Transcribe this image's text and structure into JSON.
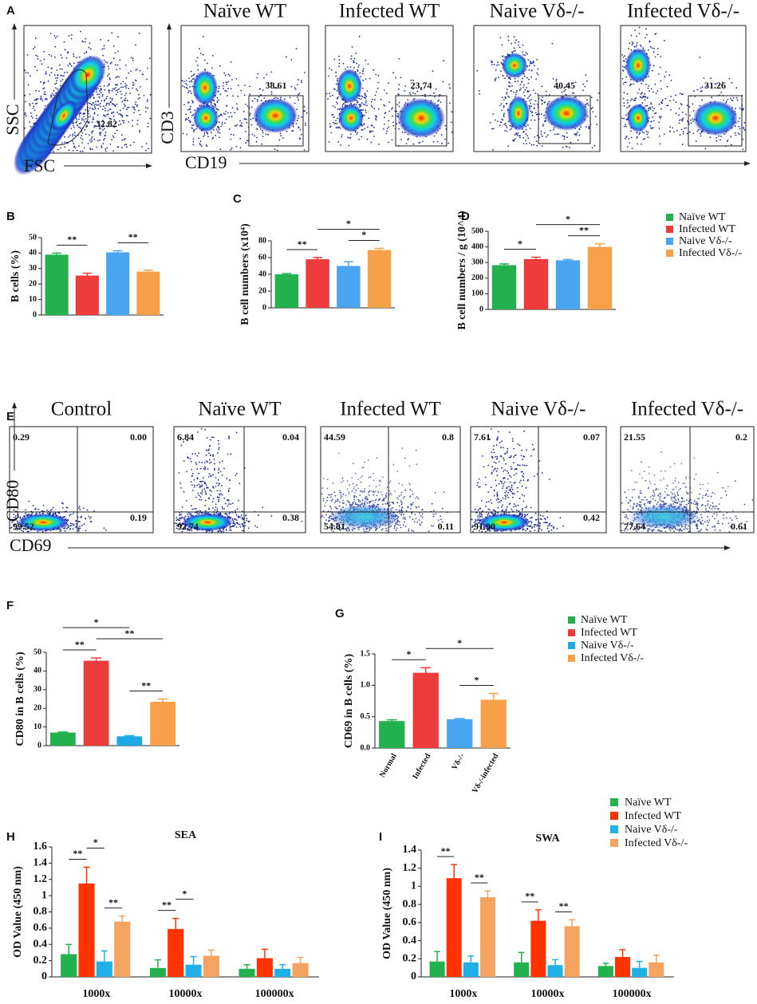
{
  "flow_a": {
    "panel": "A",
    "scatter": {
      "x_label": "FSC",
      "y_label": "SSC",
      "gate": "32.82"
    },
    "x_label": "CD19",
    "y_label": "CD3",
    "plots": [
      {
        "title": "Naïve WT",
        "gate": "38.61"
      },
      {
        "title": "Infected WT",
        "gate": "23.74"
      },
      {
        "title": "Naive Vδ-/-",
        "gate": "40.45"
      },
      {
        "title": "Infected Vδ-/-",
        "gate": "31.26"
      }
    ]
  },
  "flow_e": {
    "panel": "E",
    "x_label": "CD69",
    "y_label": "CD80",
    "plots": [
      {
        "title": "Control",
        "quadrants": [
          "0.29",
          "0.00",
          "99.52",
          "0.19"
        ]
      },
      {
        "title": "Naïve WT",
        "quadrants": [
          "6.84",
          "0.04",
          "92.74",
          "0.38"
        ]
      },
      {
        "title": "Infected WT",
        "quadrants": [
          "44.59",
          "0.8",
          "54.81",
          "0.11"
        ]
      },
      {
        "title": "Naive Vδ-/-",
        "quadrants": [
          "7.61",
          "0.07",
          "91.90",
          "0.42"
        ]
      },
      {
        "title": "Infected Vδ-/-",
        "quadrants": [
          "21.55",
          "0.2",
          "77.64",
          "0.61"
        ]
      }
    ]
  },
  "legends": [
    {
      "names": [
        "Naïve WT",
        "Infected WT",
        "Naive Vδ-/-",
        "Infected Vδ-/-"
      ],
      "colors": [
        "#22b14c",
        "#ee3b3b",
        "#4aa5f0",
        "#f7a04a"
      ]
    },
    {
      "names": [
        "Naïve WT",
        "Infected WT",
        "Naive Vδ-/-",
        "Infected Vδ-/-"
      ],
      "colors": [
        "#22b14c",
        "#ee3b3b",
        "#1fa8e6",
        "#f7a04a"
      ]
    }
  ],
  "chart_data": [
    {
      "type": "bar",
      "panel": "B",
      "y_label": "B cells (%)",
      "values": [
        39,
        25.5,
        40.5,
        28
      ],
      "errors": [
        1,
        1.5,
        1,
        1
      ],
      "colors": [
        "#22b14c",
        "#ee3b3b",
        "#4aa5f0",
        "#f7a04a"
      ],
      "ylim": [
        0,
        50
      ],
      "yticks": [
        0,
        10,
        20,
        30,
        40,
        50
      ],
      "brackets": [
        {
          "label": "**",
          "between": [
            0,
            1
          ]
        },
        {
          "label": "**",
          "between": [
            2,
            3
          ]
        }
      ]
    },
    {
      "type": "bar",
      "panel": "C",
      "y_label": "B cell numbers  (x10⁴)",
      "values": [
        40,
        58,
        50,
        69
      ],
      "errors": [
        1,
        2,
        5,
        2
      ],
      "colors": [
        "#22b14c",
        "#ee3b3b",
        "#4aa5f0",
        "#f7a04a"
      ],
      "ylim": [
        0,
        80
      ],
      "yticks": [
        0,
        20,
        40,
        60,
        80
      ],
      "brackets": [
        {
          "label": "**",
          "between": [
            0,
            1
          ]
        },
        {
          "label": "*",
          "between": [
            2,
            3
          ]
        },
        {
          "label": "*",
          "between": [
            1,
            3
          ]
        }
      ]
    },
    {
      "type": "bar",
      "panel": "D",
      "y_label": "B cell numbers / g (10^4)",
      "values": [
        283,
        322,
        314,
        400
      ],
      "errors": [
        8,
        12,
        5,
        20
      ],
      "colors": [
        "#22b14c",
        "#ee3b3b",
        "#4aa5f0",
        "#f7a04a"
      ],
      "ylim": [
        0,
        500
      ],
      "yticks": [
        0,
        100,
        200,
        300,
        400,
        500
      ],
      "brackets": [
        {
          "label": "*",
          "between": [
            0,
            1
          ]
        },
        {
          "label": "**",
          "between": [
            2,
            3
          ]
        },
        {
          "label": "*",
          "between": [
            1,
            3
          ]
        }
      ]
    },
    {
      "type": "bar",
      "panel": "F",
      "y_label": "CD80 in B cells (%)",
      "values": [
        7,
        45.5,
        5,
        23.5
      ],
      "errors": [
        0.3,
        1.5,
        0.3,
        1.5
      ],
      "colors": [
        "#22b14c",
        "#ee3b3b",
        "#1fa8e6",
        "#f7a04a"
      ],
      "ylim": [
        0,
        50
      ],
      "yticks": [
        0,
        10,
        20,
        30,
        40,
        50
      ],
      "brackets": [
        {
          "label": "**",
          "between": [
            0,
            1
          ]
        },
        {
          "label": "**",
          "between": [
            1,
            3
          ]
        },
        {
          "label": "**",
          "between": [
            2,
            3
          ]
        },
        {
          "label": "*",
          "between": [
            0,
            2
          ]
        }
      ]
    },
    {
      "type": "bar",
      "panel": "G",
      "y_label": "CD69 in B cells (%)",
      "categories": [
        "Normal",
        "Infected",
        "Vδ-/-",
        "Vδ-/-infected"
      ],
      "values": [
        0.43,
        1.2,
        0.46,
        0.77
      ],
      "errors": [
        0.02,
        0.08,
        0.01,
        0.1
      ],
      "colors": [
        "#22b14c",
        "#ee3b3b",
        "#4aa5f0",
        "#f7a04a"
      ],
      "ylim": [
        0,
        1.5
      ],
      "yticks": [
        {
          "value": 0,
          "label": "0.0"
        },
        0.5,
        {
          "value": 1,
          "label": "1.0"
        },
        1.5
      ],
      "brackets": [
        {
          "label": "*",
          "between": [
            0,
            1
          ]
        },
        {
          "label": "*",
          "between": [
            2,
            3
          ]
        },
        {
          "label": "*",
          "between": [
            1,
            3
          ]
        }
      ]
    },
    {
      "type": "grouped-bar",
      "panel": "H",
      "title": "SEA",
      "y_label": "OD Value (450 nm)",
      "categories": [
        "1000x",
        "10000x",
        "100000x"
      ],
      "series": [
        {
          "color": "#22b14c",
          "values": [
            0.28,
            0.11,
            0.1
          ],
          "errors": [
            0.12,
            0.1,
            0.05
          ]
        },
        {
          "color": "#ff3300",
          "values": [
            1.15,
            0.59,
            0.23
          ],
          "errors": [
            0.2,
            0.13,
            0.11
          ]
        },
        {
          "color": "#1fb0e8",
          "values": [
            0.19,
            0.15,
            0.1
          ],
          "errors": [
            0.13,
            0.1,
            0.05
          ]
        },
        {
          "color": "#f4a460",
          "values": [
            0.68,
            0.26,
            0.17
          ],
          "errors": [
            0.07,
            0.07,
            0.07
          ]
        }
      ],
      "ylim": [
        0,
        1.6
      ],
      "yticks": [
        0,
        0.2,
        0.4,
        0.6,
        0.8,
        1,
        1.2,
        1.4,
        1.6
      ],
      "brackets": [
        {
          "label": "**",
          "group": 0,
          "between": [
            0,
            1
          ]
        },
        {
          "label": "*",
          "group": 0,
          "between": [
            1,
            2
          ]
        },
        {
          "label": "**",
          "group": 0,
          "between": [
            2,
            3
          ]
        },
        {
          "label": "**",
          "group": 1,
          "between": [
            0,
            1
          ]
        },
        {
          "label": "*",
          "group": 1,
          "between": [
            1,
            2
          ]
        }
      ]
    },
    {
      "type": "grouped-bar",
      "panel": "I",
      "title": "SWA",
      "y_label": "OD Value (450 nm)",
      "categories": [
        "1000x",
        "10000x",
        "100000x"
      ],
      "series": [
        {
          "name": "Naïve WT",
          "color": "#22b14c",
          "values": [
            0.17,
            0.16,
            0.12
          ],
          "errors": [
            0.11,
            0.11,
            0.03
          ]
        },
        {
          "name": "Infected WT",
          "color": "#ff3300",
          "values": [
            1.09,
            0.62,
            0.22
          ],
          "errors": [
            0.15,
            0.12,
            0.08
          ]
        },
        {
          "name": "Naive Vδ-/-",
          "color": "#1fb0e8",
          "values": [
            0.16,
            0.13,
            0.1
          ],
          "errors": [
            0.07,
            0.06,
            0.07
          ]
        },
        {
          "name": "Infected Vδ-/-",
          "color": "#f4a460",
          "values": [
            0.88,
            0.56,
            0.16
          ],
          "errors": [
            0.07,
            0.07,
            0.08
          ]
        }
      ],
      "ylim": [
        0,
        1.4
      ],
      "yticks": [
        0,
        0.2,
        0.4,
        0.6,
        0.8,
        1,
        1.2,
        1.4
      ],
      "brackets": [
        {
          "label": "**",
          "group": 0,
          "between": [
            0,
            1
          ]
        },
        {
          "label": "**",
          "group": 0,
          "between": [
            2,
            3
          ]
        },
        {
          "label": "**",
          "group": 1,
          "between": [
            0,
            1
          ]
        },
        {
          "label": "**",
          "group": 1,
          "between": [
            2,
            3
          ]
        }
      ]
    }
  ]
}
